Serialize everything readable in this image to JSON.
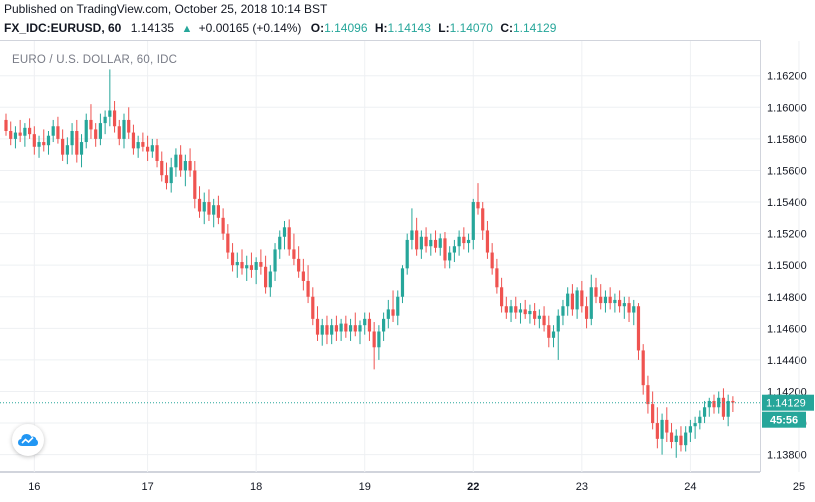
{
  "header": {
    "published": "Published on TradingView.com, October 25, 2018 10:14 BST",
    "symbol": "FX_IDC:EURUSD, 60",
    "last": "1.14135",
    "change": "+0.00165 (+0.14%)",
    "o_label": "O:",
    "o_value": "1.14096",
    "h_label": "H:",
    "h_value": "1.14143",
    "l_label": "L:",
    "l_value": "1.14070",
    "c_label": "C:",
    "c_value": "1.14129"
  },
  "chart_label": "EURO / U.S. DOLLAR, 60, IDC",
  "colors": {
    "up": "#26a69a",
    "down": "#ef5350",
    "grid": "#eef0f3",
    "axis_text": "#131722"
  },
  "icons": {
    "logo": "tradingview-cloud-icon",
    "arrow": "up-triangle-icon"
  },
  "chart_data": {
    "type": "candlestick",
    "ylim": [
      1.1369,
      1.1642
    ],
    "y_ticks": [
      "1.16200",
      "1.16000",
      "1.15800",
      "1.15600",
      "1.15400",
      "1.15200",
      "1.15000",
      "1.14800",
      "1.14600",
      "1.14400",
      "1.14200",
      "1.14000",
      "1.13800"
    ],
    "x_ticks": [
      "16",
      "17",
      "18",
      "19",
      "22",
      "23",
      "24",
      "25"
    ],
    "current_price": "1.14129",
    "countdown": "45:56",
    "grid": true,
    "series": [
      {
        "t": 0,
        "o": 1.1592,
        "h": 1.1596,
        "l": 1.1582,
        "c": 1.1585
      },
      {
        "t": 1,
        "o": 1.1585,
        "h": 1.1591,
        "l": 1.1576,
        "c": 1.158
      },
      {
        "t": 2,
        "o": 1.158,
        "h": 1.1588,
        "l": 1.1574,
        "c": 1.1584
      },
      {
        "t": 3,
        "o": 1.1584,
        "h": 1.1592,
        "l": 1.1578,
        "c": 1.1582
      },
      {
        "t": 4,
        "o": 1.1582,
        "h": 1.159,
        "l": 1.1575,
        "c": 1.1587
      },
      {
        "t": 5,
        "o": 1.1587,
        "h": 1.1593,
        "l": 1.158,
        "c": 1.1583
      },
      {
        "t": 6,
        "o": 1.1583,
        "h": 1.1588,
        "l": 1.157,
        "c": 1.1575
      },
      {
        "t": 7,
        "o": 1.1575,
        "h": 1.1582,
        "l": 1.1568,
        "c": 1.1578
      },
      {
        "t": 8,
        "o": 1.1578,
        "h": 1.1586,
        "l": 1.1572,
        "c": 1.1576
      },
      {
        "t": 9,
        "o": 1.1576,
        "h": 1.1585,
        "l": 1.157,
        "c": 1.1582
      },
      {
        "t": 10,
        "o": 1.1582,
        "h": 1.1592,
        "l": 1.1578,
        "c": 1.1588
      },
      {
        "t": 11,
        "o": 1.1588,
        "h": 1.1594,
        "l": 1.1577,
        "c": 1.158
      },
      {
        "t": 12,
        "o": 1.158,
        "h": 1.1586,
        "l": 1.1566,
        "c": 1.157
      },
      {
        "t": 13,
        "o": 1.157,
        "h": 1.1581,
        "l": 1.1564,
        "c": 1.1576
      },
      {
        "t": 14,
        "o": 1.1576,
        "h": 1.159,
        "l": 1.157,
        "c": 1.1585
      },
      {
        "t": 15,
        "o": 1.1585,
        "h": 1.1592,
        "l": 1.1565,
        "c": 1.157
      },
      {
        "t": 16,
        "o": 1.157,
        "h": 1.1583,
        "l": 1.1562,
        "c": 1.1578
      },
      {
        "t": 17,
        "o": 1.1578,
        "h": 1.1596,
        "l": 1.1574,
        "c": 1.1592
      },
      {
        "t": 18,
        "o": 1.1592,
        "h": 1.1602,
        "l": 1.158,
        "c": 1.1586
      },
      {
        "t": 19,
        "o": 1.1586,
        "h": 1.159,
        "l": 1.1575,
        "c": 1.158
      },
      {
        "t": 20,
        "o": 1.158,
        "h": 1.1596,
        "l": 1.1576,
        "c": 1.159
      },
      {
        "t": 21,
        "o": 1.159,
        "h": 1.1598,
        "l": 1.1583,
        "c": 1.1594
      },
      {
        "t": 22,
        "o": 1.1594,
        "h": 1.1624,
        "l": 1.1588,
        "c": 1.1598
      },
      {
        "t": 23,
        "o": 1.1598,
        "h": 1.1604,
        "l": 1.1584,
        "c": 1.1588
      },
      {
        "t": 24,
        "o": 1.1588,
        "h": 1.1592,
        "l": 1.1576,
        "c": 1.158
      },
      {
        "t": 25,
        "o": 1.158,
        "h": 1.1596,
        "l": 1.1574,
        "c": 1.1592
      },
      {
        "t": 26,
        "o": 1.1592,
        "h": 1.16,
        "l": 1.158,
        "c": 1.1584
      },
      {
        "t": 27,
        "o": 1.1584,
        "h": 1.1589,
        "l": 1.157,
        "c": 1.1574
      },
      {
        "t": 28,
        "o": 1.1574,
        "h": 1.1582,
        "l": 1.1568,
        "c": 1.1578
      },
      {
        "t": 29,
        "o": 1.1578,
        "h": 1.1584,
        "l": 1.1572,
        "c": 1.1575
      },
      {
        "t": 30,
        "o": 1.1575,
        "h": 1.1582,
        "l": 1.1566,
        "c": 1.1572
      },
      {
        "t": 31,
        "o": 1.1572,
        "h": 1.158,
        "l": 1.1568,
        "c": 1.1576
      },
      {
        "t": 32,
        "o": 1.1576,
        "h": 1.158,
        "l": 1.1562,
        "c": 1.1566
      },
      {
        "t": 33,
        "o": 1.1566,
        "h": 1.1572,
        "l": 1.1553,
        "c": 1.1557
      },
      {
        "t": 34,
        "o": 1.1557,
        "h": 1.1565,
        "l": 1.1548,
        "c": 1.1552
      },
      {
        "t": 35,
        "o": 1.1552,
        "h": 1.1568,
        "l": 1.1546,
        "c": 1.1562
      },
      {
        "t": 36,
        "o": 1.1562,
        "h": 1.1574,
        "l": 1.1556,
        "c": 1.157
      },
      {
        "t": 37,
        "o": 1.157,
        "h": 1.1576,
        "l": 1.1556,
        "c": 1.156
      },
      {
        "t": 38,
        "o": 1.156,
        "h": 1.157,
        "l": 1.155,
        "c": 1.1566
      },
      {
        "t": 39,
        "o": 1.1566,
        "h": 1.1574,
        "l": 1.1556,
        "c": 1.156
      },
      {
        "t": 40,
        "o": 1.156,
        "h": 1.1566,
        "l": 1.1536,
        "c": 1.1542
      },
      {
        "t": 41,
        "o": 1.1542,
        "h": 1.155,
        "l": 1.153,
        "c": 1.1534
      },
      {
        "t": 42,
        "o": 1.1534,
        "h": 1.1546,
        "l": 1.1526,
        "c": 1.154
      },
      {
        "t": 43,
        "o": 1.154,
        "h": 1.1548,
        "l": 1.1528,
        "c": 1.1532
      },
      {
        "t": 44,
        "o": 1.1532,
        "h": 1.1542,
        "l": 1.1524,
        "c": 1.1538
      },
      {
        "t": 45,
        "o": 1.1538,
        "h": 1.1544,
        "l": 1.1526,
        "c": 1.153
      },
      {
        "t": 46,
        "o": 1.153,
        "h": 1.1536,
        "l": 1.1516,
        "c": 1.152
      },
      {
        "t": 47,
        "o": 1.152,
        "h": 1.1526,
        "l": 1.1504,
        "c": 1.1508
      },
      {
        "t": 48,
        "o": 1.1508,
        "h": 1.1514,
        "l": 1.1496,
        "c": 1.15
      },
      {
        "t": 49,
        "o": 1.15,
        "h": 1.1508,
        "l": 1.1492,
        "c": 1.1502
      },
      {
        "t": 50,
        "o": 1.1502,
        "h": 1.151,
        "l": 1.1494,
        "c": 1.1498
      },
      {
        "t": 51,
        "o": 1.1498,
        "h": 1.1506,
        "l": 1.149,
        "c": 1.15
      },
      {
        "t": 52,
        "o": 1.15,
        "h": 1.1508,
        "l": 1.1492,
        "c": 1.1497
      },
      {
        "t": 53,
        "o": 1.1497,
        "h": 1.1505,
        "l": 1.1488,
        "c": 1.1502
      },
      {
        "t": 54,
        "o": 1.1502,
        "h": 1.151,
        "l": 1.1494,
        "c": 1.1499
      },
      {
        "t": 55,
        "o": 1.1499,
        "h": 1.1506,
        "l": 1.1482,
        "c": 1.1486
      },
      {
        "t": 56,
        "o": 1.1486,
        "h": 1.15,
        "l": 1.148,
        "c": 1.1496
      },
      {
        "t": 57,
        "o": 1.1496,
        "h": 1.1514,
        "l": 1.149,
        "c": 1.151
      },
      {
        "t": 58,
        "o": 1.151,
        "h": 1.1522,
        "l": 1.1504,
        "c": 1.1518
      },
      {
        "t": 59,
        "o": 1.1518,
        "h": 1.1528,
        "l": 1.151,
        "c": 1.1524
      },
      {
        "t": 60,
        "o": 1.1524,
        "h": 1.1529,
        "l": 1.1506,
        "c": 1.151
      },
      {
        "t": 61,
        "o": 1.151,
        "h": 1.152,
        "l": 1.15,
        "c": 1.1504
      },
      {
        "t": 62,
        "o": 1.1504,
        "h": 1.1512,
        "l": 1.1492,
        "c": 1.1496
      },
      {
        "t": 63,
        "o": 1.1496,
        "h": 1.1504,
        "l": 1.1484,
        "c": 1.149
      },
      {
        "t": 64,
        "o": 1.149,
        "h": 1.15,
        "l": 1.1476,
        "c": 1.148
      },
      {
        "t": 65,
        "o": 1.148,
        "h": 1.1486,
        "l": 1.1462,
        "c": 1.1466
      },
      {
        "t": 66,
        "o": 1.1466,
        "h": 1.1474,
        "l": 1.1452,
        "c": 1.1456
      },
      {
        "t": 67,
        "o": 1.1456,
        "h": 1.1466,
        "l": 1.1449,
        "c": 1.1462
      },
      {
        "t": 68,
        "o": 1.1462,
        "h": 1.1468,
        "l": 1.145,
        "c": 1.1456
      },
      {
        "t": 69,
        "o": 1.1456,
        "h": 1.1466,
        "l": 1.145,
        "c": 1.1462
      },
      {
        "t": 70,
        "o": 1.1462,
        "h": 1.1468,
        "l": 1.1452,
        "c": 1.1458
      },
      {
        "t": 71,
        "o": 1.1458,
        "h": 1.1466,
        "l": 1.1452,
        "c": 1.1463
      },
      {
        "t": 72,
        "o": 1.1463,
        "h": 1.1468,
        "l": 1.1454,
        "c": 1.1458
      },
      {
        "t": 73,
        "o": 1.1458,
        "h": 1.1466,
        "l": 1.1452,
        "c": 1.1462
      },
      {
        "t": 74,
        "o": 1.1462,
        "h": 1.147,
        "l": 1.1455,
        "c": 1.1458
      },
      {
        "t": 75,
        "o": 1.1458,
        "h": 1.1465,
        "l": 1.145,
        "c": 1.1462
      },
      {
        "t": 76,
        "o": 1.1462,
        "h": 1.147,
        "l": 1.1456,
        "c": 1.1466
      },
      {
        "t": 77,
        "o": 1.1466,
        "h": 1.147,
        "l": 1.1452,
        "c": 1.1458
      },
      {
        "t": 78,
        "o": 1.1458,
        "h": 1.1464,
        "l": 1.1434,
        "c": 1.1448
      },
      {
        "t": 79,
        "o": 1.1448,
        "h": 1.1462,
        "l": 1.144,
        "c": 1.1458
      },
      {
        "t": 80,
        "o": 1.1458,
        "h": 1.147,
        "l": 1.1452,
        "c": 1.1466
      },
      {
        "t": 81,
        "o": 1.1466,
        "h": 1.1478,
        "l": 1.146,
        "c": 1.1472
      },
      {
        "t": 82,
        "o": 1.1472,
        "h": 1.1484,
        "l": 1.1464,
        "c": 1.1468
      },
      {
        "t": 83,
        "o": 1.1468,
        "h": 1.1484,
        "l": 1.1462,
        "c": 1.148
      },
      {
        "t": 84,
        "o": 1.148,
        "h": 1.15,
        "l": 1.1476,
        "c": 1.1498
      },
      {
        "t": 85,
        "o": 1.1498,
        "h": 1.152,
        "l": 1.1494,
        "c": 1.1516
      },
      {
        "t": 86,
        "o": 1.1516,
        "h": 1.1536,
        "l": 1.151,
        "c": 1.1522
      },
      {
        "t": 87,
        "o": 1.1522,
        "h": 1.153,
        "l": 1.1506,
        "c": 1.151
      },
      {
        "t": 88,
        "o": 1.151,
        "h": 1.1522,
        "l": 1.1504,
        "c": 1.1518
      },
      {
        "t": 89,
        "o": 1.1518,
        "h": 1.1524,
        "l": 1.1508,
        "c": 1.1512
      },
      {
        "t": 90,
        "o": 1.1512,
        "h": 1.152,
        "l": 1.1506,
        "c": 1.1516
      },
      {
        "t": 91,
        "o": 1.1516,
        "h": 1.1522,
        "l": 1.1508,
        "c": 1.1511
      },
      {
        "t": 92,
        "o": 1.1511,
        "h": 1.152,
        "l": 1.1506,
        "c": 1.1517
      },
      {
        "t": 93,
        "o": 1.1517,
        "h": 1.1521,
        "l": 1.1498,
        "c": 1.1503
      },
      {
        "t": 94,
        "o": 1.1503,
        "h": 1.1512,
        "l": 1.1498,
        "c": 1.1508
      },
      {
        "t": 95,
        "o": 1.1508,
        "h": 1.1516,
        "l": 1.1502,
        "c": 1.1512
      },
      {
        "t": 96,
        "o": 1.1512,
        "h": 1.1522,
        "l": 1.1506,
        "c": 1.1518
      },
      {
        "t": 97,
        "o": 1.1518,
        "h": 1.1524,
        "l": 1.151,
        "c": 1.1514
      },
      {
        "t": 98,
        "o": 1.1514,
        "h": 1.152,
        "l": 1.1508,
        "c": 1.1516
      },
      {
        "t": 99,
        "o": 1.1516,
        "h": 1.1542,
        "l": 1.151,
        "c": 1.154
      },
      {
        "t": 100,
        "o": 1.154,
        "h": 1.1552,
        "l": 1.1532,
        "c": 1.1536
      },
      {
        "t": 101,
        "o": 1.1536,
        "h": 1.154,
        "l": 1.1516,
        "c": 1.1522
      },
      {
        "t": 102,
        "o": 1.1522,
        "h": 1.1528,
        "l": 1.1504,
        "c": 1.1508
      },
      {
        "t": 103,
        "o": 1.1508,
        "h": 1.1514,
        "l": 1.1494,
        "c": 1.1498
      },
      {
        "t": 104,
        "o": 1.1498,
        "h": 1.1504,
        "l": 1.1482,
        "c": 1.1486
      },
      {
        "t": 105,
        "o": 1.1486,
        "h": 1.1492,
        "l": 1.147,
        "c": 1.1474
      },
      {
        "t": 106,
        "o": 1.1474,
        "h": 1.148,
        "l": 1.1466,
        "c": 1.147
      },
      {
        "t": 107,
        "o": 1.147,
        "h": 1.1478,
        "l": 1.1464,
        "c": 1.1474
      },
      {
        "t": 108,
        "o": 1.1474,
        "h": 1.148,
        "l": 1.1466,
        "c": 1.147
      },
      {
        "t": 109,
        "o": 1.147,
        "h": 1.1476,
        "l": 1.1463,
        "c": 1.1472
      },
      {
        "t": 110,
        "o": 1.1472,
        "h": 1.1478,
        "l": 1.1466,
        "c": 1.1469
      },
      {
        "t": 111,
        "o": 1.1469,
        "h": 1.1475,
        "l": 1.1463,
        "c": 1.1471
      },
      {
        "t": 112,
        "o": 1.1471,
        "h": 1.1476,
        "l": 1.1462,
        "c": 1.1466
      },
      {
        "t": 113,
        "o": 1.1466,
        "h": 1.1472,
        "l": 1.146,
        "c": 1.1468
      },
      {
        "t": 114,
        "o": 1.1468,
        "h": 1.1474,
        "l": 1.1458,
        "c": 1.1462
      },
      {
        "t": 115,
        "o": 1.1462,
        "h": 1.1468,
        "l": 1.1448,
        "c": 1.1454
      },
      {
        "t": 116,
        "o": 1.1454,
        "h": 1.1462,
        "l": 1.1448,
        "c": 1.1458
      },
      {
        "t": 117,
        "o": 1.1458,
        "h": 1.1472,
        "l": 1.144,
        "c": 1.1468
      },
      {
        "t": 118,
        "o": 1.1468,
        "h": 1.1478,
        "l": 1.1462,
        "c": 1.1474
      },
      {
        "t": 119,
        "o": 1.1474,
        "h": 1.1486,
        "l": 1.1468,
        "c": 1.1482
      },
      {
        "t": 120,
        "o": 1.1482,
        "h": 1.1488,
        "l": 1.1468,
        "c": 1.1472
      },
      {
        "t": 121,
        "o": 1.1472,
        "h": 1.1486,
        "l": 1.1466,
        "c": 1.1484
      },
      {
        "t": 122,
        "o": 1.1484,
        "h": 1.149,
        "l": 1.147,
        "c": 1.1474
      },
      {
        "t": 123,
        "o": 1.1474,
        "h": 1.148,
        "l": 1.146,
        "c": 1.1466
      },
      {
        "t": 124,
        "o": 1.1466,
        "h": 1.1494,
        "l": 1.1462,
        "c": 1.1486
      },
      {
        "t": 125,
        "o": 1.1486,
        "h": 1.1492,
        "l": 1.1476,
        "c": 1.148
      },
      {
        "t": 126,
        "o": 1.148,
        "h": 1.1488,
        "l": 1.1472,
        "c": 1.1476
      },
      {
        "t": 127,
        "o": 1.1476,
        "h": 1.1484,
        "l": 1.147,
        "c": 1.148
      },
      {
        "t": 128,
        "o": 1.148,
        "h": 1.1486,
        "l": 1.1472,
        "c": 1.1476
      },
      {
        "t": 129,
        "o": 1.1476,
        "h": 1.1482,
        "l": 1.147,
        "c": 1.1478
      },
      {
        "t": 130,
        "o": 1.1478,
        "h": 1.1484,
        "l": 1.147,
        "c": 1.1474
      },
      {
        "t": 131,
        "o": 1.1474,
        "h": 1.148,
        "l": 1.1466,
        "c": 1.1476
      },
      {
        "t": 132,
        "o": 1.1476,
        "h": 1.148,
        "l": 1.1464,
        "c": 1.147
      },
      {
        "t": 133,
        "o": 1.147,
        "h": 1.1478,
        "l": 1.1462,
        "c": 1.1474
      },
      {
        "t": 134,
        "o": 1.1474,
        "h": 1.1476,
        "l": 1.144,
        "c": 1.1446
      },
      {
        "t": 135,
        "o": 1.1446,
        "h": 1.145,
        "l": 1.1418,
        "c": 1.1424
      },
      {
        "t": 136,
        "o": 1.1424,
        "h": 1.143,
        "l": 1.1406,
        "c": 1.1412
      },
      {
        "t": 137,
        "o": 1.1412,
        "h": 1.142,
        "l": 1.1396,
        "c": 1.14
      },
      {
        "t": 138,
        "o": 1.14,
        "h": 1.141,
        "l": 1.1384,
        "c": 1.139
      },
      {
        "t": 139,
        "o": 1.139,
        "h": 1.1406,
        "l": 1.138,
        "c": 1.1402
      },
      {
        "t": 140,
        "o": 1.1402,
        "h": 1.141,
        "l": 1.1388,
        "c": 1.1394
      },
      {
        "t": 141,
        "o": 1.1394,
        "h": 1.14,
        "l": 1.1384,
        "c": 1.1388
      },
      {
        "t": 142,
        "o": 1.1388,
        "h": 1.1396,
        "l": 1.1378,
        "c": 1.1392
      },
      {
        "t": 143,
        "o": 1.1392,
        "h": 1.1398,
        "l": 1.1382,
        "c": 1.1386
      },
      {
        "t": 144,
        "o": 1.1386,
        "h": 1.1398,
        "l": 1.1382,
        "c": 1.1394
      },
      {
        "t": 145,
        "o": 1.1394,
        "h": 1.1402,
        "l": 1.1388,
        "c": 1.1398
      },
      {
        "t": 146,
        "o": 1.1398,
        "h": 1.1404,
        "l": 1.139,
        "c": 1.14
      },
      {
        "t": 147,
        "o": 1.14,
        "h": 1.1408,
        "l": 1.1396,
        "c": 1.1404
      },
      {
        "t": 148,
        "o": 1.1404,
        "h": 1.1414,
        "l": 1.14,
        "c": 1.141
      },
      {
        "t": 149,
        "o": 1.141,
        "h": 1.1416,
        "l": 1.1404,
        "c": 1.1414
      },
      {
        "t": 150,
        "o": 1.1414,
        "h": 1.1418,
        "l": 1.1406,
        "c": 1.141
      },
      {
        "t": 151,
        "o": 1.141,
        "h": 1.142,
        "l": 1.1406,
        "c": 1.1416
      },
      {
        "t": 152,
        "o": 1.1416,
        "h": 1.1422,
        "l": 1.1402,
        "c": 1.1404
      },
      {
        "t": 153,
        "o": 1.1404,
        "h": 1.1418,
        "l": 1.1398,
        "c": 1.1414
      },
      {
        "t": 154,
        "o": 1.1414,
        "h": 1.1417,
        "l": 1.1407,
        "c": 1.1413
      }
    ],
    "day_boundaries": [
      {
        "label": "16",
        "t": 6
      },
      {
        "label": "17",
        "t": 30
      },
      {
        "label": "18",
        "t": 53
      },
      {
        "label": "19",
        "t": 76
      },
      {
        "label": "22",
        "t": 99
      },
      {
        "label": "23",
        "t": 122
      },
      {
        "label": "24",
        "t": 145
      },
      {
        "label": "25",
        "t": 168
      }
    ]
  }
}
